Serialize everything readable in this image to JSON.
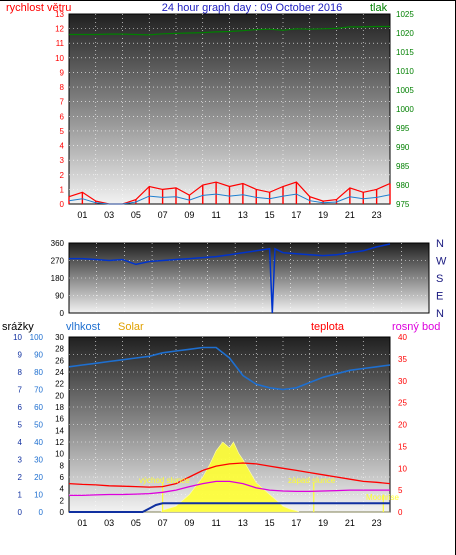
{
  "title": "24 hour graph day : 09 October 2016",
  "colors": {
    "wind": "#ff0000",
    "wind_secondary": "#1e7fd0",
    "pressure": "#008000",
    "direction": "#0033cc",
    "rain": "#1030a0",
    "humidity": "#1e6fd0",
    "solar": "#ffff33",
    "temperature": "#ff0000",
    "dewpoint": "#dd00dd"
  },
  "chart_data": [
    {
      "type": "line",
      "title": "24 hour graph day : 09 October 2016",
      "xticks": [
        "01",
        "03",
        "05",
        "07",
        "09",
        "11",
        "13",
        "15",
        "17",
        "19",
        "21",
        "23"
      ],
      "left_axis": {
        "label": "rychlost větru",
        "range": [
          0,
          13
        ],
        "ticks": [
          0,
          1,
          2,
          3,
          4,
          5,
          6,
          7,
          8,
          9,
          10,
          11,
          12,
          13
        ]
      },
      "right_axis": {
        "label": "tlak",
        "range": [
          975,
          1025
        ],
        "ticks": [
          975,
          980,
          985,
          990,
          995,
          1000,
          1005,
          1010,
          1015,
          1020,
          1025
        ]
      },
      "series": [
        {
          "name": "rychlost větru",
          "axis": "left",
          "x": [
            0,
            1,
            2,
            3,
            4,
            5,
            6,
            7,
            8,
            9,
            10,
            11,
            12,
            13,
            14,
            15,
            16,
            17,
            18,
            19,
            20,
            21,
            22,
            23,
            24
          ],
          "values": [
            0.5,
            0.8,
            0.2,
            0.0,
            0.0,
            0.3,
            1.2,
            1.0,
            1.1,
            0.6,
            1.3,
            1.5,
            1.2,
            1.4,
            1.0,
            0.8,
            1.2,
            1.5,
            0.5,
            0.2,
            0.3,
            1.1,
            0.8,
            1.0,
            1.4
          ]
        },
        {
          "name": "tlak",
          "axis": "right",
          "x": [
            0,
            1,
            2,
            3,
            4,
            5,
            6,
            7,
            8,
            9,
            10,
            11,
            12,
            13,
            14,
            15,
            16,
            17,
            18,
            19,
            20,
            21,
            22,
            23,
            24
          ],
          "values": [
            1019.6,
            1019.6,
            1019.6,
            1019.7,
            1019.7,
            1019.6,
            1019.5,
            1019.8,
            1019.9,
            1020.0,
            1020.1,
            1020.3,
            1020.4,
            1020.6,
            1020.9,
            1021.0,
            1020.7,
            1021.1,
            1021.0,
            1021.1,
            1021.2,
            1021.6,
            1021.6,
            1021.7,
            1021.7
          ]
        }
      ]
    },
    {
      "type": "line",
      "xticks": [],
      "left_axis": {
        "range": [
          0,
          360
        ],
        "ticks": [
          0,
          90,
          180,
          270,
          360
        ]
      },
      "right_labels": [
        "N",
        "W",
        "S",
        "E",
        "N"
      ],
      "series": [
        {
          "name": "směr větru",
          "x": [
            0,
            1,
            2,
            3,
            4,
            5,
            6,
            7,
            8,
            9,
            10,
            11,
            12,
            13,
            14,
            15,
            15.2,
            15.4,
            16,
            17,
            18,
            19,
            20,
            21,
            22,
            23,
            24
          ],
          "values": [
            280,
            280,
            275,
            270,
            275,
            250,
            265,
            270,
            275,
            280,
            285,
            290,
            300,
            310,
            320,
            330,
            0,
            330,
            310,
            305,
            300,
            295,
            300,
            310,
            320,
            340,
            355
          ]
        }
      ]
    },
    {
      "type": "line",
      "xticks": [
        "01",
        "03",
        "05",
        "07",
        "09",
        "11",
        "13",
        "15",
        "17",
        "19",
        "21",
        "23"
      ],
      "legend": [
        "srážky",
        "vlhkost",
        "Solar",
        "teplota",
        "rosný bod"
      ],
      "axes": {
        "rain": {
          "label": "srážky",
          "ticks": [
            0,
            1,
            2,
            3,
            4,
            5,
            6,
            7,
            8,
            9,
            10
          ]
        },
        "humidity": {
          "label": "vlhkost",
          "range": [
            0,
            100
          ],
          "ticks": [
            0,
            10,
            20,
            30,
            40,
            50,
            60,
            70,
            80,
            90,
            100
          ]
        },
        "left_temp": {
          "range": [
            0,
            30
          ],
          "ticks": [
            0,
            2,
            4,
            6,
            8,
            10,
            12,
            14,
            16,
            18,
            20,
            22,
            24,
            26,
            28,
            30
          ]
        },
        "right_temp": {
          "label": "teplota",
          "range": [
            0,
            40
          ],
          "ticks": [
            0,
            5,
            10,
            15,
            20,
            25,
            30,
            35,
            40
          ]
        }
      },
      "annotations": [
        "východ slunce",
        "západ slunce",
        "Moonrise"
      ],
      "series": [
        {
          "name": "vlhkost",
          "axis": "humidity",
          "x": [
            0,
            1,
            2,
            3,
            4,
            5,
            6,
            7,
            8,
            9,
            10,
            11,
            12,
            13,
            14,
            15,
            16,
            17,
            18,
            19,
            20,
            21,
            22,
            23,
            24
          ],
          "values": [
            83,
            84,
            85,
            86,
            87,
            88,
            89,
            91,
            92,
            93,
            94,
            94,
            88,
            78,
            73,
            71,
            70,
            71,
            74,
            77,
            79,
            81,
            82,
            83,
            84
          ]
        },
        {
          "name": "teplota",
          "axis": "right_temp",
          "x": [
            0,
            1,
            2,
            3,
            4,
            5,
            6,
            7,
            8,
            9,
            10,
            11,
            12,
            13,
            14,
            15,
            16,
            17,
            18,
            19,
            20,
            21,
            22,
            23,
            24
          ],
          "values": [
            6.5,
            6.3,
            6.2,
            6.0,
            5.9,
            5.8,
            5.7,
            5.8,
            6.5,
            8.0,
            9.5,
            10.5,
            11.0,
            11.2,
            11.0,
            10.5,
            10.0,
            9.5,
            9.0,
            8.5,
            8.0,
            7.5,
            7.0,
            6.8,
            6.5
          ]
        },
        {
          "name": "rosný bod",
          "axis": "right_temp",
          "x": [
            0,
            1,
            2,
            3,
            4,
            5,
            6,
            7,
            8,
            9,
            10,
            11,
            12,
            13,
            14,
            15,
            16,
            17,
            18,
            19,
            20,
            21,
            22,
            23,
            24
          ],
          "values": [
            3.8,
            3.8,
            3.9,
            4.0,
            4.0,
            4.1,
            4.2,
            4.5,
            5.0,
            5.8,
            6.5,
            7.0,
            7.0,
            6.5,
            5.5,
            5.0,
            4.8,
            4.7,
            4.7,
            4.8,
            4.9,
            5.0,
            5.0,
            5.0,
            5.0
          ]
        },
        {
          "name": "Solar",
          "axis": "left_temp",
          "x": [
            0,
            6.9,
            7,
            8,
            9,
            10,
            10.5,
            11,
            11.5,
            12,
            12.3,
            12.7,
            13,
            13.5,
            14,
            14.5,
            15,
            15.5,
            16,
            16.5,
            17,
            17.2,
            24
          ],
          "values": [
            0,
            0,
            0.3,
            1.0,
            3.0,
            6.0,
            8.0,
            10.5,
            12.0,
            11.0,
            12.0,
            10.0,
            9.0,
            7.0,
            5.0,
            4.0,
            3.0,
            2.0,
            1.0,
            0.5,
            0.2,
            0,
            0
          ]
        },
        {
          "name": "srážky",
          "axis": "rain",
          "x": [
            0,
            5.5,
            6,
            6.5,
            7,
            24
          ],
          "values": [
            0,
            0,
            0.2,
            0.4,
            0.5,
            0.5
          ]
        }
      ]
    }
  ]
}
